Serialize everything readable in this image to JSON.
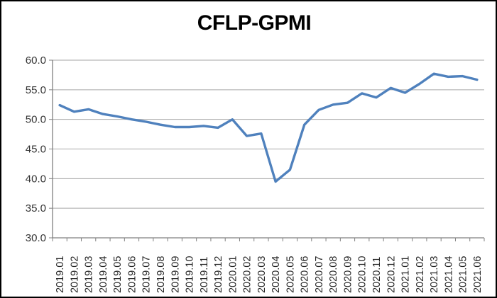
{
  "title": "CFLP-GPMI",
  "chart_data": {
    "type": "line",
    "title": "CFLP-GPMI",
    "xlabel": "",
    "ylabel": "",
    "categories": [
      "2019.01",
      "2019.02",
      "2019.03",
      "2019.04",
      "2019.05",
      "2019.06",
      "2019.07",
      "2019.08",
      "2019.09",
      "2019.10",
      "2019.11",
      "2019.12",
      "2020.01",
      "2020.02",
      "2020.03",
      "2020.04",
      "2020.05",
      "2020.06",
      "2020.07",
      "2020.08",
      "2020.09",
      "2020.10",
      "2020.11",
      "2020.12",
      "2021.01",
      "2021.02",
      "2021.03",
      "2021.04",
      "2021.05",
      "2021.06"
    ],
    "values": [
      52.4,
      51.3,
      51.7,
      50.9,
      50.5,
      50.0,
      49.6,
      49.1,
      48.7,
      48.7,
      48.9,
      48.6,
      50.0,
      47.2,
      47.6,
      39.5,
      41.5,
      49.1,
      51.6,
      52.5,
      52.8,
      54.4,
      53.7,
      55.3,
      54.5,
      56.0,
      57.7,
      57.2,
      57.3,
      56.7
    ],
    "ylim": [
      30,
      60
    ],
    "ytick_step": 5,
    "ytick_labels": [
      "30.0",
      "35.0",
      "40.0",
      "45.0",
      "50.0",
      "55.0",
      "60.0"
    ],
    "grid": true,
    "legend": "none",
    "series_name": "CFLP-GPMI",
    "line_color": "#4F81BD",
    "axis_color": "#808080",
    "gridline_color": "#A6A6A6",
    "tick_label_color": "#333333",
    "title_color": "#000000",
    "background_color": "#FFFFFF"
  }
}
